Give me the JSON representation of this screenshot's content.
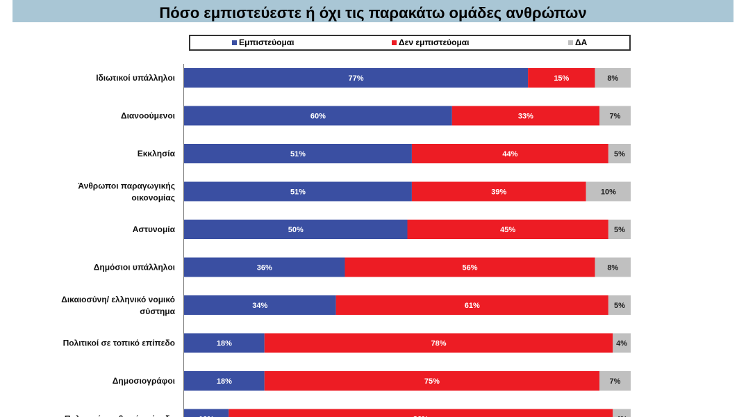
{
  "title": "Πόσο εμπιστεύεστε ή όχι τις παρακάτω ομάδες ανθρώπων",
  "chart_data": {
    "type": "bar",
    "orientation": "horizontal",
    "stacked": true,
    "percent_suffix": "%",
    "legend": [
      "Εμπιστεύομαι",
      "Δεν εμπιστεύομαι",
      "ΔΑ"
    ],
    "colors": {
      "trust": "#3a4fa2",
      "distrust": "#ed1c24",
      "na": "#c0c0c0"
    },
    "categories": [
      [
        "Ιδιωτικοί υπάλληλοι"
      ],
      [
        "Διανοούμενοι"
      ],
      [
        "Εκκλησία"
      ],
      [
        "Άνθρωποι παραγωγικής",
        "οικονομίας"
      ],
      [
        "Αστυνομία"
      ],
      [
        "Δημόσιοι υπάλληλοι"
      ],
      [
        "Δικαιοσύνη/ ελληνικό νομικό",
        "σύστημα"
      ],
      [
        "Πολιτικοί σε τοπικό επίπεδο"
      ],
      [
        "Δημοσιογράφοι"
      ],
      [
        "Πολιτικοί σε εθνικό επίπεδο"
      ]
    ],
    "series": [
      {
        "name": "Εμπιστεύομαι",
        "values": [
          77,
          60,
          51,
          51,
          50,
          36,
          34,
          18,
          18,
          10
        ]
      },
      {
        "name": "Δεν εμπιστεύομαι",
        "values": [
          15,
          33,
          44,
          39,
          45,
          56,
          61,
          78,
          75,
          86
        ]
      },
      {
        "name": "ΔΑ",
        "values": [
          8,
          7,
          5,
          10,
          5,
          8,
          5,
          4,
          7,
          4
        ]
      }
    ],
    "xlim": [
      0,
      100
    ]
  }
}
